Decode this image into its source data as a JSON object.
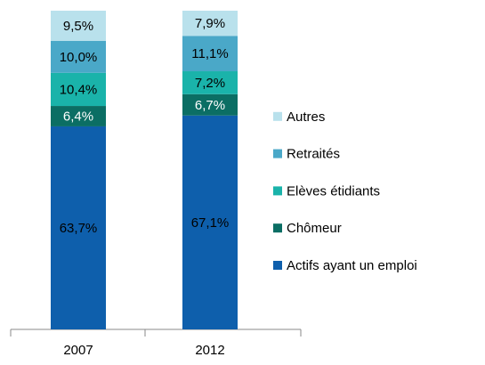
{
  "chart_data": {
    "type": "stacked_bar",
    "categories": [
      "2007",
      "2012"
    ],
    "series": [
      {
        "name": "Actifs ayant un emploi",
        "color": "#0e5fac",
        "values": [
          63.7,
          67.1
        ],
        "value_labels": [
          "63,7%",
          "67,1%"
        ]
      },
      {
        "name": "Chômeur",
        "color": "#0b6e64",
        "values": [
          6.4,
          6.7
        ],
        "value_labels": [
          "6,4%",
          "6,7%"
        ]
      },
      {
        "name": "Elèves étidiants",
        "color": "#1ab3aa",
        "values": [
          10.4,
          7.2
        ],
        "value_labels": [
          "10,4%",
          "7,2%"
        ]
      },
      {
        "name": "Retraités",
        "color": "#4aa8c8",
        "values": [
          10.0,
          11.1
        ],
        "value_labels": [
          "10,0%",
          "11,1%"
        ]
      },
      {
        "name": "Autres",
        "color": "#b9e1ec",
        "values": [
          9.5,
          7.9
        ],
        "value_labels": [
          "9,5%",
          "7,9%"
        ]
      }
    ],
    "legend": "right"
  }
}
